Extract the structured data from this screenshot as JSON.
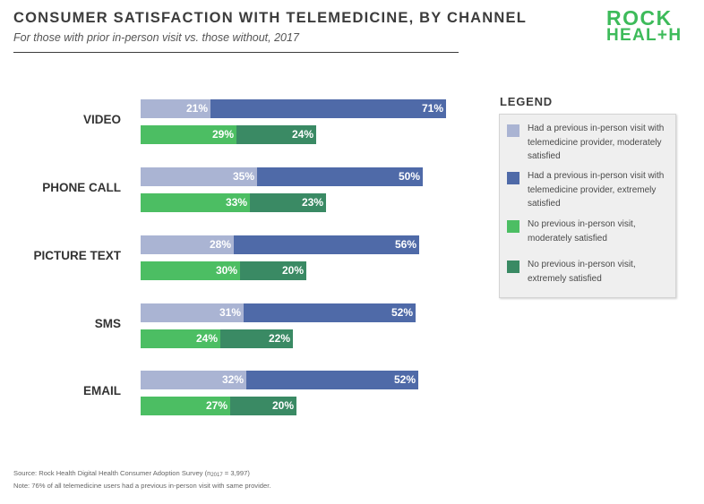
{
  "header": {
    "title": "CONSUMER SATISFACTION WITH TELEMEDICINE, BY CHANNEL",
    "subtitle": "For those with prior in-person visit vs. those without, 2017"
  },
  "logo": {
    "line1": "ROCK",
    "line2": "HEAL+H"
  },
  "legend": {
    "title": "LEGEND",
    "items": [
      {
        "text": "Had a previous in-person visit with telemedicine provider, moderately satisfied",
        "color": "#aab4d3"
      },
      {
        "text": "Had a previous in-person visit with telemedicine provider, extremely satisfied",
        "color": "#4f6aa8"
      },
      {
        "text": "No previous in-person visit, moderately satisfied",
        "color": "#4cbe63"
      },
      {
        "text": "No previous in-person visit, extremely satisfied",
        "color": "#3a8a64"
      }
    ]
  },
  "chart_data": {
    "type": "bar",
    "orientation": "horizontal",
    "stacked": true,
    "categories": [
      "VIDEO",
      "PHONE CALL",
      "PICTURE TEXT",
      "SMS",
      "EMAIL"
    ],
    "groups": [
      {
        "series": [
          {
            "values": [
              21,
              35,
              28,
              31,
              32
            ],
            "color": "#aab4d3"
          },
          {
            "values": [
              71,
              50,
              56,
              52,
              52
            ],
            "color": "#4f6aa8"
          }
        ]
      },
      {
        "series": [
          {
            "values": [
              29,
              33,
              30,
              24,
              27
            ],
            "color": "#4cbe63"
          },
          {
            "values": [
              24,
              23,
              20,
              22,
              20
            ],
            "color": "#3a8a64"
          }
        ]
      }
    ],
    "value_suffix": "%",
    "xlim": [
      0,
      100
    ],
    "grid": false,
    "legend_position": "right"
  },
  "footer": {
    "source_prefix": "Source: Rock Health Digital Health Consumer Adoption Survey (n",
    "source_sub": "2017",
    "source_suffix": " = 3,997)",
    "note": "Note: 76% of all telemedicine users had a previous in-person visit with same provider."
  }
}
